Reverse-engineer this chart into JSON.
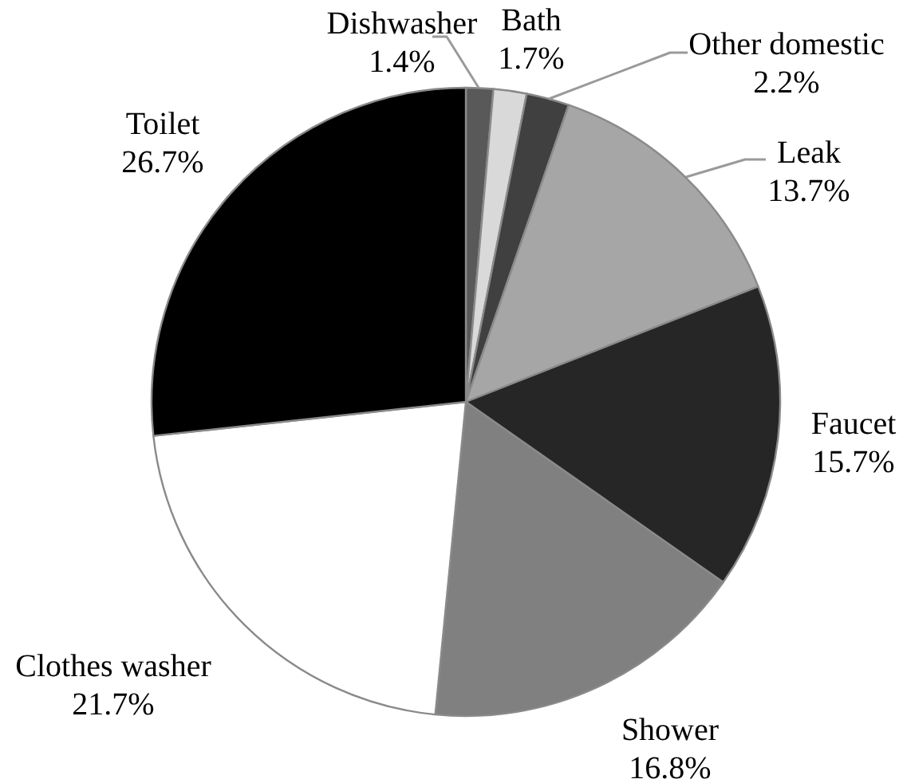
{
  "chart_data": {
    "type": "pie",
    "categories": [
      "Dishwasher",
      "Bath",
      "Other domestic",
      "Leak",
      "Faucet",
      "Shower",
      "Clothes washer",
      "Toilet"
    ],
    "values": [
      1.4,
      1.7,
      2.2,
      13.7,
      15.7,
      16.8,
      21.7,
      26.7
    ],
    "colors": [
      "#595959",
      "#d9d9d9",
      "#404040",
      "#a6a6a6",
      "#262626",
      "#808080",
      "#ffffff",
      "#000000"
    ],
    "value_labels": [
      "1.4%",
      "1.7%",
      "2.2%",
      "13.7%",
      "15.7%",
      "16.8%",
      "21.7%",
      "26.7%"
    ]
  }
}
